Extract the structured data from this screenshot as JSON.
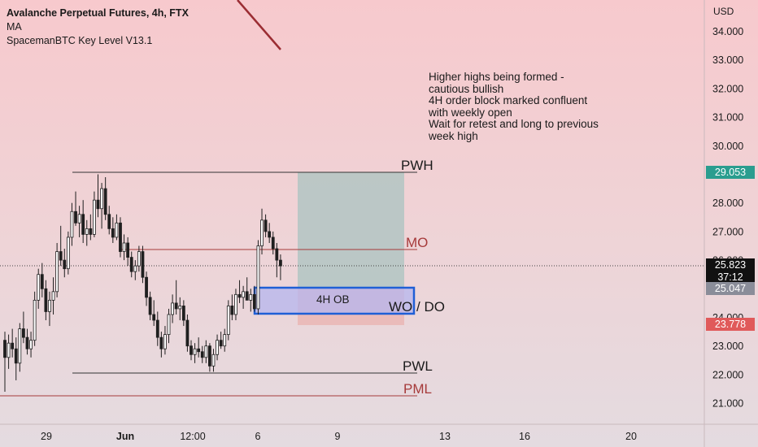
{
  "header": {
    "title": "Avalanche Perpetual Futures, 4h, FTX",
    "indicator_1": "MA",
    "indicator_2": "SpacemanBTC Key Level V13.1"
  },
  "notes": [
    "Higher highs being formed -",
    "cautious bullish",
    "4H order block marked confluent",
    "with weekly open",
    "Wait for retest and long to previous",
    "week high"
  ],
  "levels": {
    "pwh": "PWH",
    "mo": "MO",
    "wo_do": "WO / DO",
    "pwl": "PWL",
    "pml": "PML",
    "ob_label": "4H OB"
  },
  "axis": {
    "currency": "USD"
  },
  "price_tags": {
    "pwh": "29.053",
    "current": "25.823",
    "countdown": "37:12",
    "wo": "25.047",
    "sl": "23.778"
  },
  "colors": {
    "up": "#ffffff",
    "down": "#1f1f1f",
    "pwh_tag": "#2a9d8f",
    "sl_tag": "#e05a5a",
    "wo_tag": "#8a8d99",
    "current_tag": "#111111",
    "mo_line": "#a63a3a",
    "pml_line": "#a63a3a",
    "ob_border": "#1f5fd6",
    "ob_fill": "#b5b6ee",
    "target_zone": "#a9c3c0",
    "stop_zone": "#eab4b1",
    "arrow_line": "#9b2d33"
  },
  "chart_data": {
    "type": "candlestick",
    "title": "Avalanche Perpetual Futures, 4h, FTX",
    "y_axis": {
      "ticks": [
        "34.000",
        "33.000",
        "32.000",
        "31.000",
        "30.000",
        "28.000",
        "27.000",
        "26.000",
        "24.000",
        "23.000",
        "22.000",
        "21.000"
      ],
      "range": [
        20.6,
        34.8
      ]
    },
    "x_axis": {
      "ticks": [
        "29",
        "Jun",
        "12:00",
        "6",
        "9",
        "13",
        "16",
        "20"
      ]
    },
    "grid": false,
    "horizontal_levels": [
      {
        "name": "PWH",
        "value": 29.1
      },
      {
        "name": "MO",
        "value": 26.55
      },
      {
        "name": "WO / DO",
        "value": 25.05
      },
      {
        "name": "PWL",
        "value": 22.1
      },
      {
        "name": "PML",
        "value": 21.3
      }
    ],
    "order_block": {
      "label": "4H OB",
      "low": 24.15,
      "high": 25.05
    },
    "position": {
      "entry": 25.05,
      "target": 29.05,
      "stop": 23.78
    },
    "candles": [
      {
        "o": 23.2,
        "h": 23.5,
        "l": 21.4,
        "c": 22.6
      },
      {
        "o": 22.6,
        "h": 23.4,
        "l": 22.2,
        "c": 23.1
      },
      {
        "o": 23.1,
        "h": 23.6,
        "l": 22.6,
        "c": 22.9
      },
      {
        "o": 22.9,
        "h": 23.3,
        "l": 21.8,
        "c": 22.4
      },
      {
        "o": 22.4,
        "h": 23.8,
        "l": 22.1,
        "c": 23.6
      },
      {
        "o": 23.6,
        "h": 24.2,
        "l": 23.1,
        "c": 23.3
      },
      {
        "o": 23.3,
        "h": 23.6,
        "l": 22.7,
        "c": 22.9
      },
      {
        "o": 22.9,
        "h": 23.5,
        "l": 22.6,
        "c": 23.2
      },
      {
        "o": 23.2,
        "h": 24.9,
        "l": 23.0,
        "c": 24.6
      },
      {
        "o": 24.6,
        "h": 25.7,
        "l": 24.3,
        "c": 25.5
      },
      {
        "o": 25.5,
        "h": 25.9,
        "l": 24.7,
        "c": 25.0
      },
      {
        "o": 25.0,
        "h": 25.3,
        "l": 23.9,
        "c": 24.2
      },
      {
        "o": 24.2,
        "h": 24.9,
        "l": 23.7,
        "c": 24.6
      },
      {
        "o": 24.6,
        "h": 25.4,
        "l": 24.1,
        "c": 24.9
      },
      {
        "o": 24.9,
        "h": 26.6,
        "l": 24.7,
        "c": 26.3
      },
      {
        "o": 26.3,
        "h": 27.2,
        "l": 25.8,
        "c": 26.0
      },
      {
        "o": 26.0,
        "h": 26.4,
        "l": 25.4,
        "c": 25.7
      },
      {
        "o": 25.7,
        "h": 27.0,
        "l": 25.5,
        "c": 26.8
      },
      {
        "o": 26.8,
        "h": 28.0,
        "l": 26.5,
        "c": 27.7
      },
      {
        "o": 27.7,
        "h": 28.4,
        "l": 27.2,
        "c": 27.3
      },
      {
        "o": 27.3,
        "h": 27.9,
        "l": 26.8,
        "c": 27.6
      },
      {
        "o": 27.6,
        "h": 28.1,
        "l": 26.6,
        "c": 26.9
      },
      {
        "o": 26.9,
        "h": 27.4,
        "l": 26.5,
        "c": 27.1
      },
      {
        "o": 27.1,
        "h": 27.6,
        "l": 26.7,
        "c": 26.9
      },
      {
        "o": 26.9,
        "h": 28.4,
        "l": 26.8,
        "c": 28.1
      },
      {
        "o": 28.1,
        "h": 29.0,
        "l": 27.5,
        "c": 27.8
      },
      {
        "o": 27.8,
        "h": 28.7,
        "l": 27.1,
        "c": 28.5
      },
      {
        "o": 28.5,
        "h": 28.9,
        "l": 27.4,
        "c": 27.6
      },
      {
        "o": 27.6,
        "h": 27.9,
        "l": 26.9,
        "c": 27.1
      },
      {
        "o": 27.1,
        "h": 27.5,
        "l": 26.6,
        "c": 26.8
      },
      {
        "o": 26.8,
        "h": 27.6,
        "l": 26.7,
        "c": 27.3
      },
      {
        "o": 27.3,
        "h": 27.5,
        "l": 26.1,
        "c": 26.3
      },
      {
        "o": 26.3,
        "h": 26.9,
        "l": 26.0,
        "c": 26.6
      },
      {
        "o": 26.6,
        "h": 26.8,
        "l": 25.8,
        "c": 26.1
      },
      {
        "o": 26.1,
        "h": 26.3,
        "l": 25.4,
        "c": 25.6
      },
      {
        "o": 25.6,
        "h": 26.0,
        "l": 25.3,
        "c": 25.8
      },
      {
        "o": 25.8,
        "h": 26.5,
        "l": 25.6,
        "c": 26.3
      },
      {
        "o": 26.3,
        "h": 26.5,
        "l": 25.2,
        "c": 25.4
      },
      {
        "o": 25.4,
        "h": 25.6,
        "l": 24.4,
        "c": 24.7
      },
      {
        "o": 24.7,
        "h": 24.9,
        "l": 23.9,
        "c": 24.1
      },
      {
        "o": 24.1,
        "h": 24.6,
        "l": 23.7,
        "c": 23.9
      },
      {
        "o": 23.9,
        "h": 24.2,
        "l": 23.0,
        "c": 23.3
      },
      {
        "o": 23.3,
        "h": 23.5,
        "l": 22.6,
        "c": 22.9
      },
      {
        "o": 22.9,
        "h": 23.7,
        "l": 22.7,
        "c": 23.4
      },
      {
        "o": 23.4,
        "h": 24.3,
        "l": 23.1,
        "c": 24.1
      },
      {
        "o": 24.1,
        "h": 24.8,
        "l": 23.8,
        "c": 24.5
      },
      {
        "o": 24.5,
        "h": 25.3,
        "l": 24.1,
        "c": 24.3
      },
      {
        "o": 24.3,
        "h": 24.7,
        "l": 23.9,
        "c": 24.4
      },
      {
        "o": 24.4,
        "h": 24.6,
        "l": 23.7,
        "c": 23.9
      },
      {
        "o": 23.9,
        "h": 24.1,
        "l": 22.8,
        "c": 23.0
      },
      {
        "o": 23.0,
        "h": 23.2,
        "l": 22.5,
        "c": 22.7
      },
      {
        "o": 22.7,
        "h": 23.1,
        "l": 22.4,
        "c": 22.9
      },
      {
        "o": 22.9,
        "h": 23.3,
        "l": 22.6,
        "c": 22.8
      },
      {
        "o": 22.8,
        "h": 23.0,
        "l": 22.4,
        "c": 22.6
      },
      {
        "o": 22.6,
        "h": 23.2,
        "l": 22.4,
        "c": 23.0
      },
      {
        "o": 23.0,
        "h": 23.1,
        "l": 22.1,
        "c": 22.3
      },
      {
        "o": 22.3,
        "h": 22.9,
        "l": 22.1,
        "c": 22.7
      },
      {
        "o": 22.7,
        "h": 23.4,
        "l": 22.5,
        "c": 23.2
      },
      {
        "o": 23.2,
        "h": 23.5,
        "l": 22.9,
        "c": 23.0
      },
      {
        "o": 23.0,
        "h": 23.6,
        "l": 22.8,
        "c": 23.4
      },
      {
        "o": 23.4,
        "h": 24.6,
        "l": 23.2,
        "c": 24.4
      },
      {
        "o": 24.4,
        "h": 24.8,
        "l": 23.9,
        "c": 24.1
      },
      {
        "o": 24.1,
        "h": 25.0,
        "l": 23.9,
        "c": 24.8
      },
      {
        "o": 24.8,
        "h": 25.3,
        "l": 24.5,
        "c": 24.7
      },
      {
        "o": 24.7,
        "h": 25.1,
        "l": 24.3,
        "c": 24.9
      },
      {
        "o": 24.9,
        "h": 25.4,
        "l": 24.6,
        "c": 24.6
      },
      {
        "o": 24.6,
        "h": 25.0,
        "l": 24.2,
        "c": 24.8
      },
      {
        "o": 24.8,
        "h": 25.1,
        "l": 24.2,
        "c": 24.3
      },
      {
        "o": 24.3,
        "h": 26.7,
        "l": 24.1,
        "c": 26.5
      },
      {
        "o": 26.5,
        "h": 27.8,
        "l": 26.2,
        "c": 27.4
      },
      {
        "o": 27.4,
        "h": 27.6,
        "l": 26.8,
        "c": 27.0
      },
      {
        "o": 27.0,
        "h": 27.3,
        "l": 26.6,
        "c": 26.8
      },
      {
        "o": 26.8,
        "h": 27.0,
        "l": 26.2,
        "c": 26.4
      },
      {
        "o": 26.4,
        "h": 26.6,
        "l": 25.4,
        "c": 26.0
      },
      {
        "o": 26.0,
        "h": 26.2,
        "l": 25.3,
        "c": 25.8
      }
    ]
  }
}
